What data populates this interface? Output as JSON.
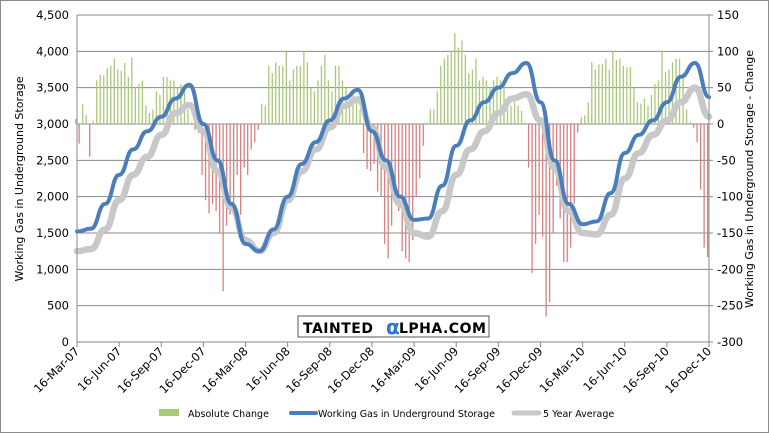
{
  "chart_data": {
    "type": "bar+line",
    "left_ylabel": "Working Gas in Underground Storage",
    "right_ylabel": "Working Gas in Underground Storage - Change",
    "left_ylim": [
      0,
      4500
    ],
    "left_ticks": [
      "0",
      "500",
      "1,000",
      "1,500",
      "2,000",
      "2,500",
      "3,000",
      "3,500",
      "4,000",
      "4,500"
    ],
    "right_ylim": [
      -300,
      150
    ],
    "right_ticks": [
      "-300",
      "-250",
      "-200",
      "-150",
      "-100",
      "-50",
      "0",
      "50",
      "100",
      "150"
    ],
    "x_ticks": [
      "16-Mar-07",
      "16-Jun-07",
      "16-Sep-07",
      "16-Dec-07",
      "16-Mar-08",
      "16-Jun-08",
      "16-Sep-08",
      "16-Dec-08",
      "16-Mar-09",
      "16-Jun-09",
      "16-Sep-09",
      "16-Dec-09",
      "16-Mar-10",
      "16-Jun-10",
      "16-Sep-10",
      "16-Dec-10"
    ],
    "grid": true,
    "legend_position": "bottom",
    "series": [
      {
        "name": "Absolute Change",
        "type": "bar",
        "axis": "right",
        "color": "#a9c97a",
        "neg_color": "#d98080",
        "frequency": "weekly",
        "values": [
          7,
          -27,
          27,
          12,
          -45,
          5,
          60,
          68,
          67,
          77,
          80,
          90,
          75,
          73,
          84,
          65,
          91,
          50,
          55,
          60,
          25,
          15,
          20,
          45,
          40,
          65,
          65,
          60,
          60,
          50,
          55,
          45,
          20,
          2,
          -8,
          -12,
          -70,
          -105,
          -123,
          -110,
          -120,
          -150,
          -230,
          -140,
          -125,
          -110,
          -70,
          -125,
          -60,
          -70,
          -35,
          -25,
          -8,
          28,
          25,
          80,
          70,
          85,
          80,
          80,
          100,
          60,
          75,
          80,
          80,
          100,
          85,
          50,
          45,
          60,
          80,
          95,
          60,
          45,
          80,
          80,
          60,
          50,
          30,
          40,
          30,
          20,
          -40,
          -62,
          -65,
          -55,
          -93,
          -100,
          -165,
          -185,
          -140,
          -80,
          -120,
          -175,
          -185,
          -190,
          -160,
          -100,
          -75,
          -30,
          2,
          20,
          20,
          45,
          80,
          90,
          95,
          100,
          125,
          105,
          115,
          95,
          70,
          75,
          90,
          60,
          65,
          60,
          50,
          60,
          65,
          60,
          55,
          20,
          25,
          30,
          25,
          18,
          2,
          -60,
          -205,
          -165,
          -125,
          -155,
          -265,
          -245,
          -150,
          -85,
          -130,
          -190,
          -190,
          -170,
          -110,
          -12,
          10,
          12,
          30,
          85,
          75,
          82,
          82,
          90,
          75,
          100,
          88,
          90,
          80,
          78,
          78,
          50,
          30,
          28,
          35,
          25,
          40,
          55,
          60,
          100,
          72,
          75,
          85,
          90,
          90,
          70,
          20,
          3,
          -5,
          -25,
          -90,
          -170,
          -183
        ]
      },
      {
        "name": "Working Gas in Underground Storage",
        "type": "line",
        "axis": "left",
        "color": "#4a7ebb",
        "frequency": "monthly",
        "values": [
          1520,
          1560,
          1900,
          2300,
          2650,
          2900,
          3100,
          3350,
          3540,
          3000,
          2500,
          1900,
          1350,
          1250,
          1550,
          2000,
          2450,
          2750,
          3050,
          3350,
          3470,
          2900,
          2500,
          2000,
          1680,
          1700,
          2150,
          2700,
          3050,
          3300,
          3500,
          3700,
          3840,
          3300,
          2500,
          1900,
          1620,
          1660,
          2050,
          2600,
          2850,
          3050,
          3300,
          3650,
          3840,
          3370
        ]
      },
      {
        "name": "5 Year Average",
        "type": "line",
        "axis": "left",
        "color": "#c8c8c8",
        "frequency": "monthly",
        "values": [
          1250,
          1280,
          1550,
          1950,
          2300,
          2550,
          2850,
          3150,
          3260,
          2900,
          2350,
          1850,
          1400,
          1250,
          1500,
          1950,
          2350,
          2650,
          2950,
          3250,
          3340,
          2950,
          2400,
          1900,
          1500,
          1450,
          1800,
          2300,
          2650,
          2900,
          3150,
          3350,
          3410,
          3050,
          2400,
          1800,
          1500,
          1480,
          1750,
          2250,
          2600,
          2850,
          3050,
          3300,
          3500,
          3100
        ]
      }
    ]
  },
  "watermark": {
    "text_left": "TAINTED",
    "alpha": "α",
    "text_right": "LPHA.COM"
  }
}
